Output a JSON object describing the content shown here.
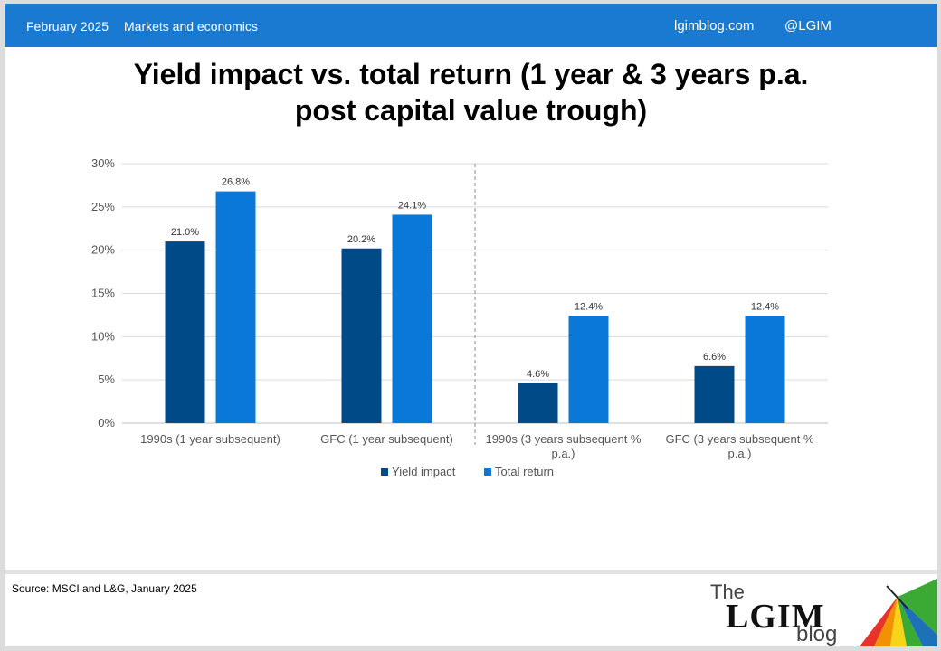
{
  "header": {
    "date": "February 2025",
    "section": "Markets and economics",
    "site": "lgimblog.com",
    "handle": "@LGIM",
    "bg_color": "#1a7ad1"
  },
  "title_line1": "Yield impact vs. total return (1 year & 3 years p.a.",
  "title_line2": "post capital value trough)",
  "source": "Source: MSCI and L&G, January 2025",
  "logo": {
    "the": "The",
    "lgim": "LGIM",
    "blog": "blog"
  },
  "chart_data": {
    "type": "bar",
    "categories": [
      [
        "1990s (1 year subsequent)"
      ],
      [
        "GFC (1 year subsequent)"
      ],
      [
        "1990s (3 years subsequent %",
        "p.a.)"
      ],
      [
        "GFC (3 years subsequent %",
        "p.a.)"
      ]
    ],
    "series": [
      {
        "name": "Yield impact",
        "color": "#004b87",
        "values": [
          21.0,
          20.2,
          4.6,
          6.6
        ],
        "labels": [
          "21.0%",
          "20.2%",
          "4.6%",
          "6.6%"
        ]
      },
      {
        "name": "Total return",
        "color": "#0a78d8",
        "values": [
          26.8,
          24.1,
          12.4,
          12.4
        ],
        "labels": [
          "26.8%",
          "24.1%",
          "12.4%",
          "12.4%"
        ]
      }
    ],
    "ylim": [
      0,
      30
    ],
    "yticks": [
      0,
      5,
      10,
      15,
      20,
      25,
      30
    ],
    "ytick_labels": [
      "0%",
      "5%",
      "10%",
      "15%",
      "20%",
      "25%",
      "30%"
    ],
    "grid": true,
    "legend": "bottom",
    "separator_after_category": 1
  }
}
